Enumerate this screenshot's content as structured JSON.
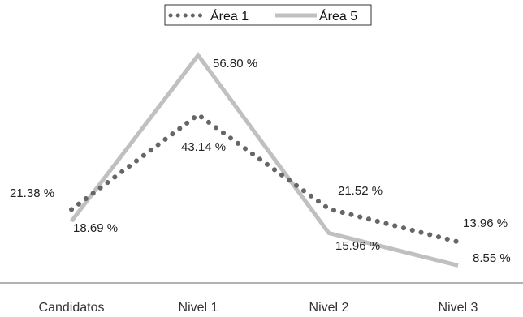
{
  "chart_data": {
    "type": "line",
    "categories": [
      "Candidatos",
      "Nivel 1",
      "Nivel 2",
      "Nivel 3"
    ],
    "series": [
      {
        "name": "Área 1",
        "values": [
          21.38,
          43.14,
          21.52,
          13.96
        ],
        "labels": [
          "21.38 %",
          "43.14 %",
          "21.52 %",
          "13.96 %"
        ],
        "color": "#666666",
        "style": "dotted"
      },
      {
        "name": "Área 5",
        "values": [
          18.69,
          56.8,
          15.96,
          8.55
        ],
        "labels": [
          "18.69 %",
          "56.80 %",
          "15.96 %",
          "8.55 %"
        ],
        "color": "#c0c0c0",
        "style": "solid"
      }
    ],
    "ylim": [
      0,
      65
    ],
    "grid": false,
    "legend": "top-center"
  }
}
